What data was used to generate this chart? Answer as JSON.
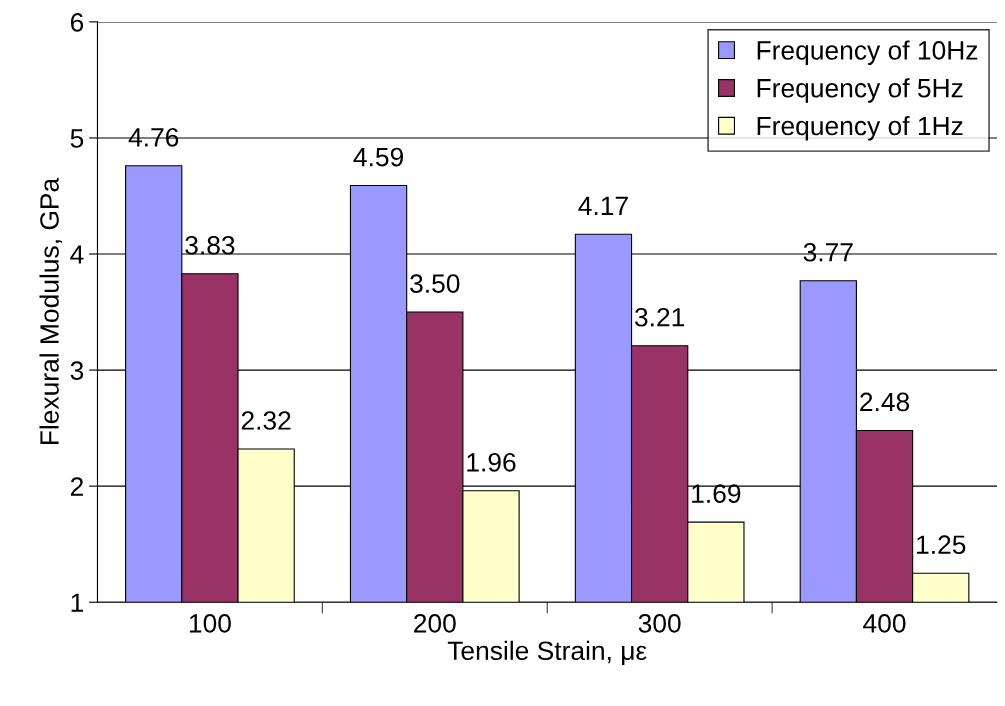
{
  "chart_data": {
    "type": "bar",
    "xlabel": "Tensile Strain, με",
    "ylabel": "Flexural Modulus, GPa",
    "categories": [
      "100",
      "200",
      "300",
      "400"
    ],
    "series": [
      {
        "name": "Frequency of 10Hz",
        "color": "#9999ff",
        "values": [
          4.76,
          4.59,
          4.17,
          3.77
        ],
        "value_labels": [
          "4.76",
          "4.59",
          "4.17",
          "3.77"
        ]
      },
      {
        "name": "Frequency of 5Hz",
        "color": "#993366",
        "values": [
          3.83,
          3.5,
          3.21,
          2.48
        ],
        "value_labels": [
          "3.83",
          "3.50",
          "3.21",
          "2.48"
        ]
      },
      {
        "name": "Frequency of 1Hz",
        "color": "#ffffcc",
        "values": [
          2.32,
          1.96,
          1.69,
          1.25
        ],
        "value_labels": [
          "2.32",
          "1.96",
          "1.69",
          "1.25"
        ]
      }
    ],
    "ylim": [
      1,
      6
    ],
    "yticks": [
      1,
      2,
      3,
      4,
      5,
      6
    ],
    "grid": "y",
    "legend": "top right"
  }
}
